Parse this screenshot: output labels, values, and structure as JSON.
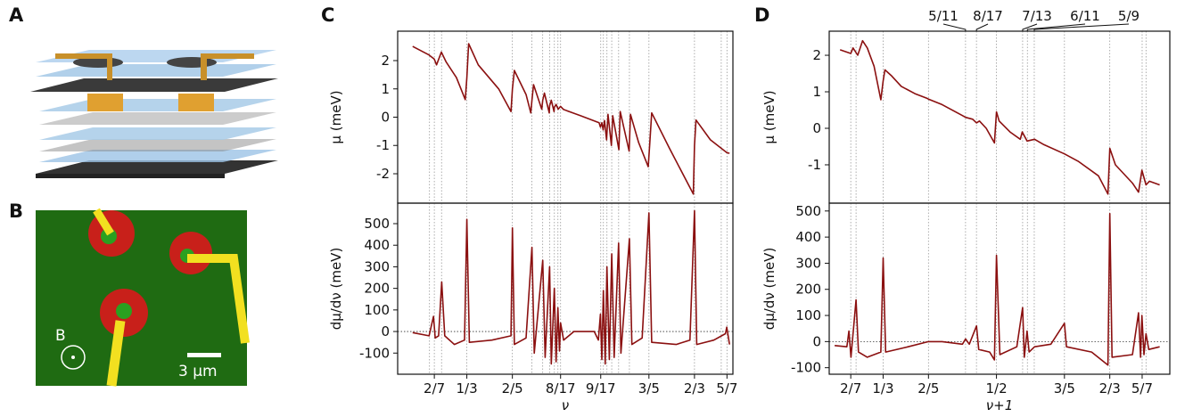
{
  "figure": {
    "panel_labels": [
      "A",
      "B",
      "C",
      "D"
    ],
    "scale_bar": "3 μm",
    "field_label": "B"
  },
  "chart_data": [
    {
      "type": "line",
      "ylabel": "μ (meV)",
      "color": "#8b1010",
      "xlim": [
        0.232,
        0.723
      ],
      "ylim": [
        -3.04,
        3.04
      ],
      "yticks": [
        -2,
        -1,
        0,
        1,
        2
      ],
      "vlines": [
        0.2786,
        0.2857,
        0.2963,
        0.3333,
        0.4,
        0.4286,
        0.4444,
        0.4545,
        0.4615,
        0.4667,
        0.4706,
        0.5294,
        0.5333,
        0.5385,
        0.5455,
        0.5556,
        0.5714,
        0.6,
        0.6667,
        0.7059,
        0.7143
      ],
      "x": [
        0.254,
        0.278,
        0.2857,
        0.289,
        0.296,
        0.303,
        0.318,
        0.331,
        0.3333,
        0.336,
        0.35,
        0.38,
        0.398,
        0.4,
        0.403,
        0.42,
        0.427,
        0.4286,
        0.431,
        0.443,
        0.4444,
        0.447,
        0.454,
        0.4545,
        0.457,
        0.461,
        0.4615,
        0.464,
        0.467,
        0.4706,
        0.475,
        0.5,
        0.527,
        0.529,
        0.531,
        0.533,
        0.535,
        0.538,
        0.54,
        0.545,
        0.547,
        0.556,
        0.558,
        0.571,
        0.573,
        0.585,
        0.599,
        0.601,
        0.604,
        0.63,
        0.665,
        0.6667,
        0.669,
        0.69,
        0.714,
        0.718
      ],
      "values": [
        2.5,
        2.2,
        2.05,
        1.85,
        2.3,
        1.95,
        1.4,
        0.62,
        1.4,
        2.6,
        1.85,
        1.0,
        0.2,
        1.0,
        1.65,
        0.8,
        0.15,
        0.6,
        1.15,
        0.28,
        0.6,
        0.85,
        0.15,
        0.4,
        0.6,
        0.2,
        0.35,
        0.45,
        0.28,
        0.38,
        0.27,
        0.05,
        -0.2,
        -0.35,
        -0.2,
        -0.45,
        -0.12,
        -0.8,
        0.1,
        -1.0,
        0.05,
        -1.15,
        0.2,
        -1.2,
        0.1,
        -0.9,
        -1.75,
        -1.0,
        0.15,
        -1.1,
        -2.72,
        -1.0,
        -0.1,
        -0.8,
        -1.25,
        -1.28
      ]
    },
    {
      "type": "line",
      "ylabel": "dμ/dν (meV)",
      "xlabel": "ν",
      "color": "#8b1010",
      "xlim": [
        0.232,
        0.723
      ],
      "ylim": [
        -198,
        595
      ],
      "yticks": [
        -100,
        0,
        100,
        200,
        300,
        400,
        500
      ],
      "hline": 0,
      "xticks": [
        {
          "value": 0.2857,
          "label": "2/7"
        },
        {
          "value": 0.3333,
          "label": "1/3"
        },
        {
          "value": 0.4,
          "label": "2/5"
        },
        {
          "value": 0.4706,
          "label": "8/17"
        },
        {
          "value": 0.5294,
          "label": "9/17"
        },
        {
          "value": 0.6,
          "label": "3/5"
        },
        {
          "value": 0.6667,
          "label": "2/3"
        },
        {
          "value": 0.7143,
          "label": "5/7"
        }
      ],
      "vlines": [
        0.2786,
        0.2857,
        0.2963,
        0.3333,
        0.4,
        0.4286,
        0.4444,
        0.4545,
        0.4615,
        0.4667,
        0.4706,
        0.5294,
        0.5333,
        0.5385,
        0.5455,
        0.5556,
        0.5714,
        0.6,
        0.6667,
        0.7059,
        0.7143
      ],
      "x": [
        0.254,
        0.278,
        0.2845,
        0.287,
        0.292,
        0.2965,
        0.301,
        0.315,
        0.33,
        0.3333,
        0.337,
        0.37,
        0.398,
        0.4,
        0.403,
        0.42,
        0.4286,
        0.432,
        0.4444,
        0.448,
        0.4545,
        0.457,
        0.4615,
        0.464,
        0.4667,
        0.469,
        0.4706,
        0.475,
        0.49,
        0.52,
        0.526,
        0.529,
        0.531,
        0.5333,
        0.536,
        0.5385,
        0.542,
        0.5455,
        0.549,
        0.5556,
        0.559,
        0.5714,
        0.575,
        0.59,
        0.6,
        0.604,
        0.64,
        0.66,
        0.6667,
        0.67,
        0.695,
        0.712,
        0.714,
        0.718
      ],
      "values": [
        -5,
        -20,
        70,
        -30,
        -20,
        230,
        -20,
        -60,
        -40,
        520,
        -50,
        -40,
        -20,
        480,
        -60,
        -30,
        390,
        -100,
        330,
        -120,
        300,
        -150,
        200,
        -140,
        110,
        -90,
        40,
        -40,
        0,
        0,
        -40,
        80,
        -130,
        190,
        -150,
        300,
        -130,
        360,
        -120,
        410,
        -100,
        430,
        -60,
        -30,
        550,
        -50,
        -60,
        -40,
        560,
        -60,
        -40,
        -10,
        20,
        -60
      ]
    },
    {
      "type": "line",
      "ylabel": "μ (meV)",
      "color": "#8b1010",
      "xlim": [
        0.254,
        0.755
      ],
      "ylim": [
        -2.05,
        2.66
      ],
      "yticks": [
        -1,
        0,
        1,
        2
      ],
      "annotations": [
        {
          "text": "5/11",
          "x": 0.4545
        },
        {
          "text": "8/17",
          "x": 0.4706
        },
        {
          "text": "7/13",
          "x": 0.5385
        },
        {
          "text": "6/11",
          "x": 0.5455
        },
        {
          "text": "5/9",
          "x": 0.5556
        }
      ],
      "vlines": [
        0.2857,
        0.2935,
        0.3333,
        0.4,
        0.4545,
        0.4706,
        0.5,
        0.5385,
        0.5455,
        0.5556,
        0.6,
        0.6667,
        0.7143,
        0.72
      ],
      "x": [
        0.27,
        0.2857,
        0.289,
        0.296,
        0.303,
        0.31,
        0.32,
        0.33,
        0.3333,
        0.336,
        0.345,
        0.36,
        0.38,
        0.398,
        0.4,
        0.42,
        0.45,
        0.4545,
        0.465,
        0.4706,
        0.475,
        0.485,
        0.497,
        0.5,
        0.504,
        0.52,
        0.535,
        0.538,
        0.545,
        0.556,
        0.57,
        0.6,
        0.62,
        0.65,
        0.664,
        0.6667,
        0.675,
        0.7,
        0.709,
        0.714,
        0.72,
        0.725,
        0.74
      ],
      "values": [
        2.15,
        2.05,
        2.2,
        2.0,
        2.4,
        2.2,
        1.7,
        0.78,
        1.3,
        1.6,
        1.45,
        1.15,
        0.95,
        0.82,
        0.8,
        0.65,
        0.35,
        0.3,
        0.25,
        0.15,
        0.2,
        0.0,
        -0.4,
        0.45,
        0.2,
        -0.1,
        -0.3,
        -0.1,
        -0.35,
        -0.3,
        -0.45,
        -0.7,
        -0.9,
        -1.3,
        -1.8,
        -0.55,
        -1.0,
        -1.5,
        -1.75,
        -1.15,
        -1.55,
        -1.45,
        -1.55
      ]
    },
    {
      "type": "line",
      "ylabel": "dμ/dν (meV)",
      "xlabel": "ν+1",
      "color": "#8b1010",
      "xlim": [
        0.254,
        0.755
      ],
      "ylim": [
        -125,
        530
      ],
      "yticks": [
        -100,
        0,
        100,
        200,
        300,
        400,
        500
      ],
      "hline": 0,
      "xticks": [
        {
          "value": 0.2857,
          "label": "2/7"
        },
        {
          "value": 0.3333,
          "label": "1/3"
        },
        {
          "value": 0.4,
          "label": "2/5"
        },
        {
          "value": 0.5,
          "label": "1/2"
        },
        {
          "value": 0.6,
          "label": "3/5"
        },
        {
          "value": 0.6667,
          "label": "2/3"
        },
        {
          "value": 0.7143,
          "label": "5/7"
        }
      ],
      "vlines": [
        0.2857,
        0.2935,
        0.3333,
        0.4,
        0.4545,
        0.4706,
        0.5,
        0.5385,
        0.5455,
        0.5556,
        0.6,
        0.6667,
        0.7143,
        0.72
      ],
      "x": [
        0.262,
        0.28,
        0.283,
        0.286,
        0.2935,
        0.297,
        0.31,
        0.33,
        0.3333,
        0.337,
        0.37,
        0.4,
        0.42,
        0.45,
        0.4545,
        0.46,
        0.4706,
        0.474,
        0.49,
        0.497,
        0.5,
        0.505,
        0.53,
        0.5385,
        0.541,
        0.545,
        0.548,
        0.556,
        0.58,
        0.6,
        0.603,
        0.64,
        0.664,
        0.6667,
        0.67,
        0.7,
        0.709,
        0.712,
        0.714,
        0.717,
        0.72,
        0.724,
        0.74
      ],
      "values": [
        -15,
        -20,
        40,
        -60,
        160,
        -40,
        -60,
        -40,
        320,
        -40,
        -20,
        0,
        0,
        -10,
        10,
        -10,
        60,
        -30,
        -40,
        -70,
        330,
        -50,
        -20,
        130,
        -60,
        40,
        -40,
        -20,
        -10,
        70,
        -20,
        -40,
        -90,
        490,
        -60,
        -50,
        110,
        -60,
        100,
        -50,
        30,
        -30,
        -20
      ]
    }
  ]
}
